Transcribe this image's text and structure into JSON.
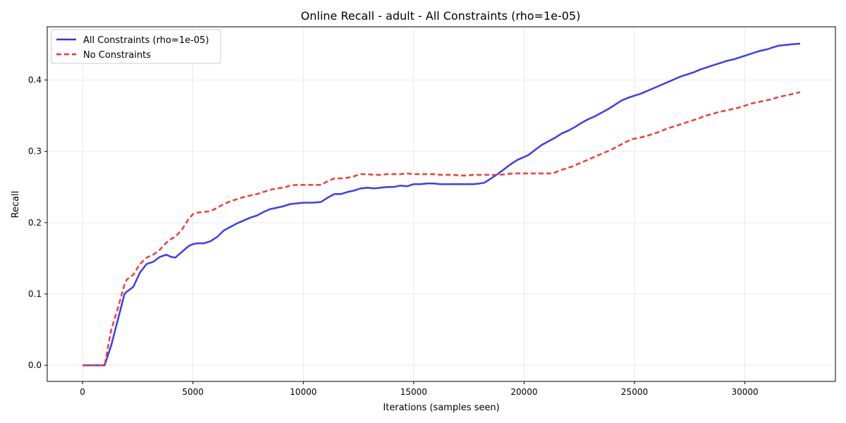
{
  "chart_data": {
    "type": "line",
    "title": "Online Recall - adult - All Constraints (rho=1e-05)",
    "xlabel": "Iterations (samples seen)",
    "ylabel": "Recall",
    "xlim": [
      -1600,
      34100
    ],
    "ylim": [
      -0.0226,
      0.4746
    ],
    "x_ticks": [
      0,
      5000,
      10000,
      15000,
      20000,
      25000,
      30000
    ],
    "x_tick_labels": [
      "0",
      "5000",
      "10000",
      "15000",
      "20000",
      "25000",
      "30000"
    ],
    "y_ticks": [
      0.0,
      0.1,
      0.2,
      0.3,
      0.4
    ],
    "y_tick_labels": [
      "0.0",
      "0.1",
      "0.2",
      "0.3",
      "0.4"
    ],
    "grid": true,
    "legend_position": "upper-left",
    "series": [
      {
        "name": "All Constraints (rho=1e-05)",
        "color": "#3333ee",
        "dash": "solid",
        "x": [
          0,
          300,
          600,
          900,
          1000,
          1300,
          1600,
          1900,
          2000,
          2300,
          2600,
          2900,
          3200,
          3500,
          3800,
          4000,
          4200,
          4500,
          4800,
          5000,
          5200,
          5500,
          5800,
          6100,
          6400,
          6700,
          7000,
          7300,
          7600,
          7900,
          8200,
          8500,
          8800,
          9100,
          9400,
          9700,
          10000,
          10400,
          10800,
          11100,
          11400,
          11700,
          12000,
          12300,
          12600,
          12900,
          13200,
          13500,
          13800,
          14100,
          14400,
          14700,
          15000,
          15300,
          15600,
          15900,
          16200,
          16500,
          16800,
          17100,
          17400,
          17700,
          18000,
          18200,
          18500,
          18800,
          19100,
          19400,
          19700,
          20000,
          20200,
          20500,
          20800,
          21100,
          21400,
          21700,
          22000,
          22300,
          22600,
          22900,
          23200,
          23500,
          23800,
          24100,
          24400,
          24700,
          25000,
          25300,
          25600,
          25900,
          26200,
          26500,
          26800,
          27100,
          27400,
          27700,
          28000,
          28300,
          28600,
          28900,
          29200,
          29500,
          29800,
          30100,
          30400,
          30700,
          31000,
          31300,
          31500,
          31800,
          32100,
          32500
        ],
        "y": [
          0.0,
          0.0,
          0.0,
          0.0,
          0.0,
          0.028,
          0.064,
          0.1,
          0.103,
          0.11,
          0.13,
          0.142,
          0.145,
          0.152,
          0.155,
          0.152,
          0.151,
          0.159,
          0.167,
          0.17,
          0.171,
          0.171,
          0.174,
          0.18,
          0.189,
          0.194,
          0.199,
          0.203,
          0.207,
          0.21,
          0.215,
          0.219,
          0.221,
          0.223,
          0.226,
          0.227,
          0.228,
          0.228,
          0.229,
          0.235,
          0.24,
          0.24,
          0.243,
          0.245,
          0.248,
          0.249,
          0.248,
          0.249,
          0.25,
          0.25,
          0.252,
          0.251,
          0.254,
          0.254,
          0.255,
          0.255,
          0.254,
          0.254,
          0.254,
          0.254,
          0.254,
          0.254,
          0.255,
          0.256,
          0.262,
          0.268,
          0.275,
          0.282,
          0.288,
          0.292,
          0.295,
          0.302,
          0.309,
          0.314,
          0.319,
          0.325,
          0.329,
          0.334,
          0.34,
          0.345,
          0.349,
          0.354,
          0.359,
          0.365,
          0.371,
          0.375,
          0.378,
          0.381,
          0.385,
          0.389,
          0.393,
          0.397,
          0.401,
          0.405,
          0.408,
          0.411,
          0.415,
          0.418,
          0.421,
          0.424,
          0.427,
          0.429,
          0.432,
          0.435,
          0.438,
          0.441,
          0.443,
          0.446,
          0.448,
          0.449,
          0.45,
          0.451
        ]
      },
      {
        "name": "No Constraints",
        "color": "#ee3333",
        "dash": "dashed",
        "x": [
          0,
          300,
          600,
          900,
          1000,
          1300,
          1600,
          1900,
          2000,
          2300,
          2600,
          2900,
          3200,
          3500,
          3800,
          4000,
          4200,
          4500,
          4800,
          5000,
          5200,
          5500,
          5800,
          6100,
          6400,
          6700,
          7000,
          7300,
          7600,
          7900,
          8200,
          8500,
          8800,
          9100,
          9400,
          9700,
          10000,
          10400,
          10800,
          11100,
          11400,
          11700,
          12000,
          12300,
          12600,
          12900,
          13200,
          13500,
          13800,
          14100,
          14400,
          14700,
          15000,
          15300,
          15600,
          15900,
          16200,
          16500,
          16800,
          17100,
          17400,
          17700,
          18000,
          18300,
          18600,
          18900,
          19200,
          19500,
          19800,
          20100,
          20400,
          20700,
          21000,
          21300,
          21600,
          21900,
          22200,
          22500,
          22800,
          23100,
          23400,
          23700,
          24000,
          24300,
          24600,
          24900,
          25200,
          25500,
          25800,
          26100,
          26400,
          26700,
          27000,
          27300,
          27600,
          27900,
          28200,
          28500,
          28800,
          29100,
          29400,
          29700,
          30000,
          30300,
          30600,
          30900,
          31200,
          31500,
          31800,
          32100,
          32500
        ],
        "y": [
          0.0,
          0.0,
          0.0,
          0.0,
          0.0,
          0.05,
          0.08,
          0.113,
          0.12,
          0.127,
          0.142,
          0.151,
          0.155,
          0.162,
          0.172,
          0.177,
          0.18,
          0.19,
          0.205,
          0.212,
          0.214,
          0.215,
          0.216,
          0.221,
          0.226,
          0.23,
          0.233,
          0.236,
          0.238,
          0.24,
          0.243,
          0.246,
          0.248,
          0.249,
          0.252,
          0.253,
          0.253,
          0.253,
          0.253,
          0.258,
          0.262,
          0.262,
          0.263,
          0.265,
          0.268,
          0.268,
          0.267,
          0.267,
          0.268,
          0.268,
          0.268,
          0.269,
          0.268,
          0.268,
          0.268,
          0.268,
          0.267,
          0.267,
          0.267,
          0.266,
          0.266,
          0.267,
          0.267,
          0.267,
          0.267,
          0.267,
          0.268,
          0.269,
          0.269,
          0.269,
          0.269,
          0.269,
          0.269,
          0.269,
          0.273,
          0.276,
          0.279,
          0.283,
          0.287,
          0.291,
          0.295,
          0.299,
          0.303,
          0.308,
          0.313,
          0.317,
          0.319,
          0.321,
          0.324,
          0.327,
          0.331,
          0.334,
          0.337,
          0.34,
          0.343,
          0.346,
          0.35,
          0.352,
          0.355,
          0.357,
          0.359,
          0.361,
          0.364,
          0.367,
          0.369,
          0.371,
          0.373,
          0.376,
          0.378,
          0.38,
          0.383
        ]
      }
    ]
  }
}
